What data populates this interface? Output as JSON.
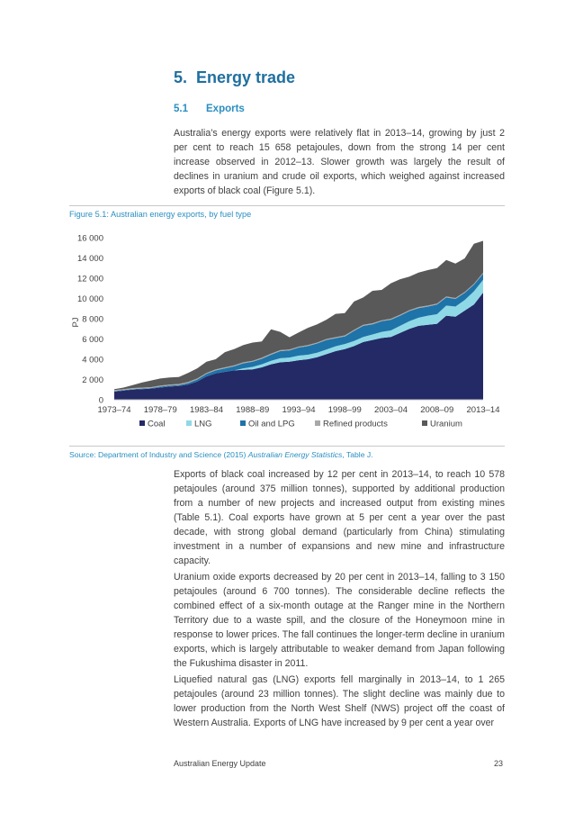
{
  "section": {
    "number": "5.",
    "title": "Energy trade"
  },
  "subsection": {
    "number": "5.1",
    "title": "Exports"
  },
  "intro": "Australia’s energy exports were relatively flat in 2013–14, growing by just 2 per cent to reach 15 658 petajoules, down from the strong 14 per cent increase observed in 2012–13. Slower growth was largely the result of declines in uranium and crude oil exports, which weighed against increased exports of black coal (Figure 5.1).",
  "figure_caption": "Figure 5.1: Australian energy exports, by fuel type",
  "source": {
    "prefix": "Source: Department of Industry and Science (2015) ",
    "title": "Australian Energy Statistics",
    "suffix": ", Table J."
  },
  "body": [
    "Exports of black coal increased by 12 per cent in 2013–14, to reach 10 578 petajoules (around 375 million tonnes), supported by additional production from a number of new projects and increased output from existing mines (Table 5.1). Coal exports have grown at 5 per cent a year over the past decade, with strong global demand (particularly from China) stimulating investment in a number of expansions and new mine and infrastructure capacity.",
    "Uranium oxide exports decreased by 20 per cent in 2013–14, falling to 3 150 petajoules (around 6 700 tonnes). The considerable decline reflects the combined effect of a six-month outage at the Ranger mine in the Northern Territory due to a waste spill, and the closure of the Honeymoon mine in response to lower prices. The fall continues the longer-term decline in uranium exports, which is largely attributable to weaker demand from Japan following the Fukushima disaster in 2011.",
    "Liquefied natural gas (LNG) exports fell marginally in 2013–14, to 1 265 petajoules (around 23 million tonnes). The slight decline was mainly due to lower production from the North West Shelf (NWS) project off the coast of Western Australia. Exports of LNG have increased by 9 per cent a year over"
  ],
  "footer": {
    "title": "Australian Energy Update",
    "page": "23"
  },
  "chart_data": {
    "type": "area",
    "stacked": true,
    "ylabel": "PJ",
    "ylim": [
      0,
      16000
    ],
    "yticks": [
      "0",
      "2 000",
      "4 000",
      "6 000",
      "8 000",
      "10 000",
      "12 000",
      "14 000",
      "16 000"
    ],
    "ytick_values": [
      0,
      2000,
      4000,
      6000,
      8000,
      10000,
      12000,
      14000,
      16000
    ],
    "xtick_labels": [
      "1973–74",
      "1978–79",
      "1983–84",
      "1988–89",
      "1993–94",
      "1998–99",
      "2003–04",
      "2008–09",
      "2013–14"
    ],
    "xtick_index": [
      0,
      5,
      10,
      15,
      20,
      25,
      30,
      35,
      40
    ],
    "x": [
      "1973–74",
      "1974–75",
      "1975–76",
      "1976–77",
      "1977–78",
      "1978–79",
      "1979–80",
      "1980–81",
      "1981–82",
      "1982–83",
      "1983–84",
      "1984–85",
      "1985–86",
      "1986–87",
      "1987–88",
      "1988–89",
      "1989–90",
      "1990–91",
      "1991–92",
      "1992–93",
      "1993–94",
      "1994–95",
      "1995–96",
      "1996–97",
      "1997–98",
      "1998–99",
      "1999–00",
      "2000–01",
      "2001–02",
      "2002–03",
      "2003–04",
      "2004–05",
      "2005–06",
      "2006–07",
      "2007–08",
      "2008–09",
      "2009–10",
      "2010–11",
      "2011–12",
      "2012–13",
      "2013–14"
    ],
    "colors": {
      "Coal": "#232a66",
      "LNG": "#8fd9e6",
      "Oil and LPG": "#1e73a8",
      "Refined products": "#a8a8a8",
      "Uranium": "#595959"
    },
    "legend_position": "bottom",
    "grid": false,
    "series": [
      {
        "name": "Coal",
        "values": [
          800,
          900,
          1000,
          1050,
          1100,
          1200,
          1300,
          1350,
          1500,
          1800,
          2300,
          2600,
          2750,
          2900,
          2950,
          3000,
          3200,
          3500,
          3700,
          3750,
          3900,
          4000,
          4200,
          4500,
          4800,
          5000,
          5300,
          5700,
          5900,
          6100,
          6200,
          6600,
          7000,
          7300,
          7400,
          7500,
          8300,
          8200,
          8800,
          9400,
          10578
        ]
      },
      {
        "name": "LNG",
        "values": [
          0,
          0,
          0,
          0,
          0,
          0,
          0,
          0,
          0,
          0,
          0,
          0,
          0,
          0,
          150,
          250,
          300,
          350,
          400,
          420,
          450,
          450,
          450,
          450,
          480,
          500,
          500,
          500,
          550,
          600,
          650,
          700,
          750,
          800,
          900,
          950,
          1000,
          1000,
          1050,
          1300,
          1265
        ]
      },
      {
        "name": "Oil and LPG",
        "values": [
          50,
          50,
          50,
          50,
          50,
          100,
          100,
          100,
          150,
          200,
          250,
          300,
          350,
          400,
          500,
          500,
          550,
          600,
          700,
          700,
          800,
          850,
          900,
          950,
          800,
          750,
          1000,
          1100,
          1000,
          1050,
          1050,
          1000,
          1000,
          950,
          900,
          950,
          800,
          750,
          700,
          650,
          600
        ]
      },
      {
        "name": "Refined products",
        "values": [
          100,
          100,
          100,
          100,
          100,
          100,
          100,
          100,
          100,
          100,
          100,
          100,
          100,
          100,
          100,
          100,
          100,
          100,
          100,
          100,
          100,
          100,
          100,
          100,
          100,
          100,
          100,
          100,
          100,
          100,
          100,
          100,
          100,
          100,
          100,
          100,
          100,
          100,
          100,
          100,
          100
        ]
      },
      {
        "name": "Uranium",
        "values": [
          100,
          150,
          300,
          500,
          650,
          700,
          700,
          700,
          900,
          1000,
          1100,
          1000,
          1500,
          1600,
          1700,
          1800,
          1600,
          2400,
          1800,
          1200,
          1400,
          1700,
          1800,
          1900,
          2300,
          2200,
          2800,
          2700,
          3200,
          3000,
          3500,
          3500,
          3300,
          3400,
          3500,
          3500,
          3600,
          3400,
          3300,
          3950,
          3150
        ]
      }
    ]
  }
}
